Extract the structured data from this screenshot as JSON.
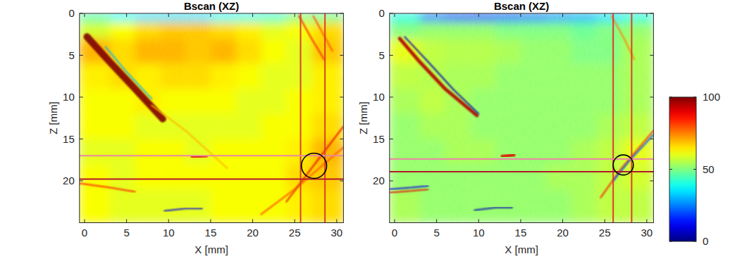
{
  "chart_data": [
    {
      "type": "heatmap",
      "title": "Bscan (XZ)",
      "x_label": "X [mm]",
      "y_label": "Z [mm]",
      "xlim": [
        -0.6,
        30.8
      ],
      "ylim": [
        25,
        0
      ],
      "xticks": [
        0,
        5,
        10,
        15,
        20,
        25,
        30
      ],
      "yticks": [
        0,
        5,
        10,
        15,
        20
      ],
      "x_edges": [
        -0.6,
        3,
        6,
        9,
        12,
        15,
        18,
        21,
        24,
        27,
        30.8
      ],
      "z_edges": [
        0,
        1,
        3,
        6,
        9,
        12,
        15,
        18,
        21,
        25
      ],
      "cells": [
        [
          45,
          38,
          35,
          35,
          35,
          38,
          40,
          42,
          50,
          48
        ],
        [
          58,
          62,
          66,
          68,
          68,
          66,
          64,
          60,
          62,
          66
        ],
        [
          70,
          66,
          70,
          70,
          68,
          70,
          66,
          62,
          60,
          68
        ],
        [
          64,
          66,
          64,
          66,
          66,
          64,
          62,
          60,
          60,
          64
        ],
        [
          62,
          62,
          64,
          62,
          62,
          62,
          60,
          60,
          62,
          64
        ],
        [
          62,
          62,
          60,
          60,
          60,
          60,
          60,
          62,
          62,
          66
        ],
        [
          60,
          60,
          62,
          62,
          60,
          62,
          62,
          62,
          64,
          70
        ],
        [
          62,
          60,
          62,
          62,
          62,
          62,
          62,
          62,
          66,
          68
        ],
        [
          62,
          60,
          60,
          60,
          60,
          62,
          62,
          62,
          64,
          66
        ]
      ],
      "reflectors": [
        {
          "x": [
            0.3,
            3,
            6,
            9.3
          ],
          "z": [
            2.8,
            5.8,
            9.0,
            12.6
          ],
          "value": 100,
          "line_style": "thick"
        },
        {
          "x": [
            2.5,
            5,
            8
          ],
          "z": [
            4.0,
            7.0,
            10.2
          ],
          "value": 30,
          "line_style": "thin"
        },
        {
          "x": [
            8,
            12,
            17
          ],
          "z": [
            11,
            14,
            18.5
          ],
          "value": 70,
          "line_style": "thin"
        },
        {
          "x": [
            12.8,
            14.5
          ],
          "z": [
            17.2,
            17.0
          ],
          "value": 90,
          "line_style": "medium"
        },
        {
          "x": [
            24,
            27,
            30.8
          ],
          "z": [
            22.5,
            18.5,
            13.5
          ],
          "value": 90,
          "line_style": "thin"
        },
        {
          "x": [
            21,
            25,
            30.8
          ],
          "z": [
            24,
            21,
            16
          ],
          "value": 80,
          "line_style": "thin"
        },
        {
          "x": [
            -0.6,
            3,
            6
          ],
          "z": [
            20.3,
            20.8,
            21.3
          ],
          "value": 85,
          "line_style": "thin"
        },
        {
          "x": [
            9.5,
            12,
            14
          ],
          "z": [
            23.6,
            23.3,
            23.3
          ],
          "value": 10,
          "line_style": "thin"
        },
        {
          "x": [
            25.5,
            27,
            28.5
          ],
          "z": [
            0.3,
            3,
            5.5
          ],
          "value": 85,
          "line_style": "thin"
        },
        {
          "x": [
            27.2,
            28.4,
            29.5
          ],
          "z": [
            0.3,
            2.5,
            4.5
          ],
          "value": 80,
          "line_style": "thin"
        }
      ],
      "vlines": [
        {
          "x": 25.7,
          "color": "#d9412c"
        },
        {
          "x": 28.6,
          "color": "#d9412c"
        }
      ],
      "hlines": [
        {
          "z": 17.0,
          "color": "#e889a3"
        },
        {
          "z": 19.8,
          "color": "#b3172c"
        }
      ],
      "circle": {
        "x": 27.3,
        "z": 18.2,
        "r": 1.5
      }
    },
    {
      "type": "heatmap",
      "title": "Bscan (XZ)",
      "x_label": "X [mm]",
      "y_label": "Z [mm]",
      "xlim": [
        -0.6,
        30.8
      ],
      "ylim": [
        25,
        0
      ],
      "xticks": [
        0,
        5,
        10,
        15,
        20,
        25,
        30
      ],
      "yticks": [
        0,
        5,
        10,
        15,
        20
      ],
      "x_edges": [
        -0.6,
        3,
        6,
        9,
        12,
        15,
        18,
        21,
        24,
        27,
        30.8
      ],
      "z_edges": [
        0,
        1,
        3,
        6,
        9,
        12,
        15,
        18,
        21,
        25
      ],
      "cells": [
        [
          40,
          25,
          20,
          20,
          22,
          25,
          28,
          30,
          35,
          40
        ],
        [
          50,
          52,
          52,
          52,
          50,
          50,
          50,
          48,
          50,
          52
        ],
        [
          60,
          56,
          55,
          55,
          54,
          52,
          52,
          50,
          50,
          54
        ],
        [
          56,
          55,
          54,
          54,
          52,
          52,
          52,
          52,
          52,
          54
        ],
        [
          54,
          56,
          54,
          52,
          52,
          52,
          52,
          52,
          52,
          54
        ],
        [
          52,
          54,
          54,
          52,
          52,
          52,
          52,
          52,
          54,
          56
        ],
        [
          52,
          52,
          54,
          54,
          52,
          52,
          52,
          54,
          56,
          60
        ],
        [
          52,
          52,
          52,
          52,
          52,
          52,
          54,
          54,
          56,
          58
        ],
        [
          54,
          52,
          52,
          52,
          52,
          52,
          52,
          54,
          56,
          56
        ]
      ],
      "reflectors": [
        {
          "x": [
            0.6,
            3,
            6,
            9.8
          ],
          "z": [
            3,
            5.8,
            9,
            12.2
          ],
          "value": 95,
          "line_style": "medium"
        },
        {
          "x": [
            1.2,
            4,
            7,
            10
          ],
          "z": [
            2.8,
            5.8,
            9.1,
            12
          ],
          "value": 5,
          "line_style": "thin"
        },
        {
          "x": [
            12.8,
            14.2
          ],
          "z": [
            17.1,
            16.9
          ],
          "value": 90,
          "line_style": "medium"
        },
        {
          "x": [
            24.5,
            27,
            30.8
          ],
          "z": [
            22,
            18.5,
            14
          ],
          "value": 85,
          "line_style": "thin"
        },
        {
          "x": [
            26,
            28,
            30.8
          ],
          "z": [
            20,
            17.5,
            14.5
          ],
          "value": 20,
          "line_style": "thin"
        },
        {
          "x": [
            -0.6,
            2,
            4
          ],
          "z": [
            21,
            20.8,
            20.6
          ],
          "value": 10,
          "line_style": "thin"
        },
        {
          "x": [
            -0.6,
            2,
            4
          ],
          "z": [
            21.4,
            21.2,
            21
          ],
          "value": 90,
          "line_style": "thin"
        },
        {
          "x": [
            9.5,
            12,
            14
          ],
          "z": [
            23.5,
            23.2,
            23.2
          ],
          "value": 5,
          "line_style": "thin"
        },
        {
          "x": [
            25.8,
            27.3,
            28.5
          ],
          "z": [
            0.3,
            3,
            5.5
          ],
          "value": 75,
          "line_style": "thin"
        }
      ],
      "vlines": [
        {
          "x": 26.0,
          "color": "#d9412c"
        },
        {
          "x": 28.2,
          "color": "#d9412c"
        }
      ],
      "hlines": [
        {
          "z": 17.4,
          "color": "#e889a3"
        },
        {
          "z": 18.9,
          "color": "#b3172c"
        }
      ],
      "circle": {
        "x": 27.2,
        "z": 18.1,
        "r": 1.2
      },
      "colorbar": {
        "range": [
          0,
          100
        ],
        "ticks": [
          0,
          50,
          100
        ]
      }
    }
  ]
}
